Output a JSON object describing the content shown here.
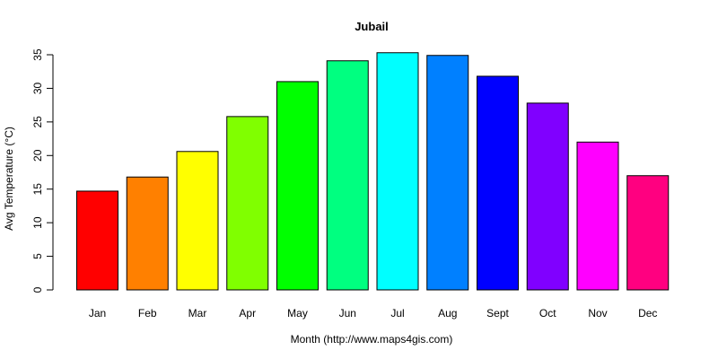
{
  "chart_data": {
    "type": "bar",
    "title": "Jubail",
    "xlabel": "Month (http://www.maps4gis.com)",
    "ylabel": "Avg Temperature (°C)",
    "categories": [
      "Jan",
      "Feb",
      "Mar",
      "Apr",
      "May",
      "Jun",
      "Jul",
      "Aug",
      "Sept",
      "Oct",
      "Nov",
      "Dec"
    ],
    "values": [
      14.7,
      16.8,
      20.6,
      25.8,
      31.0,
      34.1,
      35.3,
      34.9,
      31.8,
      27.8,
      22.0,
      17.0
    ],
    "colors": [
      "#FF0000",
      "#FF8000",
      "#FFFF00",
      "#80FF00",
      "#00FF00",
      "#00FF80",
      "#00FFFF",
      "#0080FF",
      "#0000FF",
      "#8000FF",
      "#FF00FF",
      "#FF0080"
    ],
    "yticks": [
      0,
      5,
      10,
      15,
      20,
      25,
      30,
      35
    ],
    "ylim": [
      0,
      35
    ],
    "grid": false,
    "legend": null
  }
}
